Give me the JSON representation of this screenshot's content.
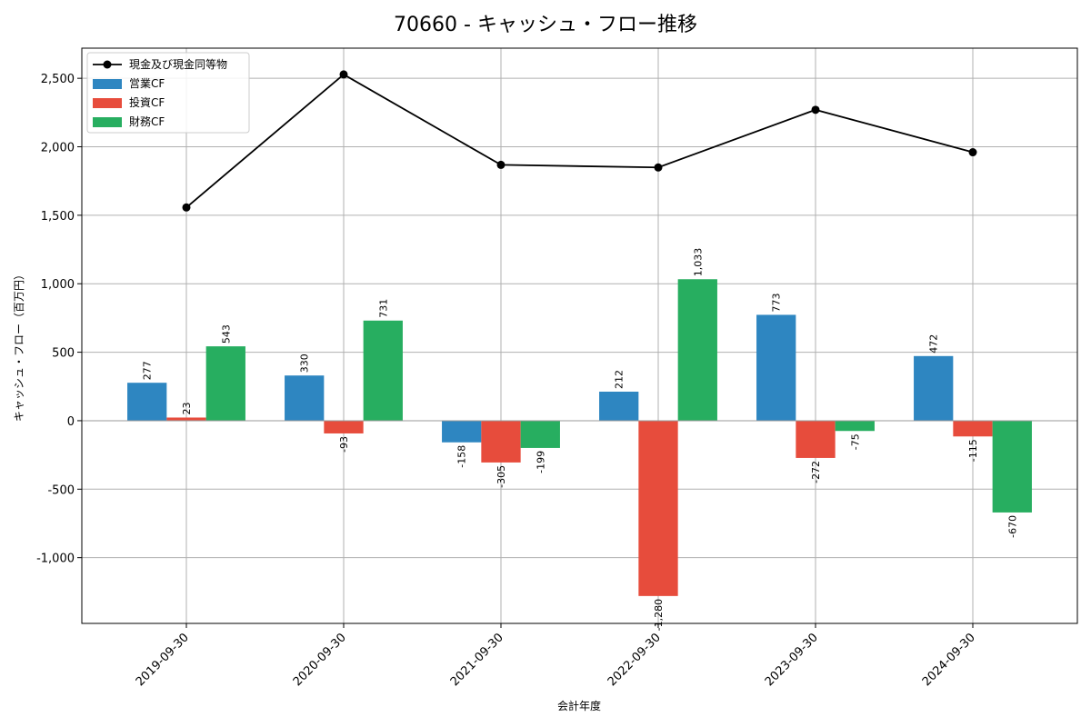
{
  "chart_data": {
    "type": "bar",
    "title": "70660 - キャッシュ・フロー推移",
    "xlabel": "会計年度",
    "ylabel": "キャッシュ・フロー（百万円）",
    "categories": [
      "2019-09-30",
      "2020-09-30",
      "2021-09-30",
      "2022-09-30",
      "2023-09-30",
      "2024-09-30"
    ],
    "series": [
      {
        "name": "営業CF",
        "type": "bar",
        "color": "#2e86c1",
        "values": [
          277,
          330,
          -158,
          212,
          773,
          472
        ],
        "labels": [
          "277",
          "330",
          "-158",
          "212",
          "773",
          "472"
        ]
      },
      {
        "name": "投資CF",
        "type": "bar",
        "color": "#e74c3c",
        "values": [
          23,
          -93,
          -305,
          -1280,
          -272,
          -115
        ],
        "labels": [
          "23",
          "-93",
          "-305",
          "-1,280",
          "-272",
          "-115"
        ]
      },
      {
        "name": "財務CF",
        "type": "bar",
        "color": "#27ae60",
        "values": [
          543,
          731,
          -199,
          1033,
          -75,
          -670
        ],
        "labels": [
          "543",
          "731",
          "-199",
          "1,033",
          "-75",
          "-670"
        ]
      },
      {
        "name": "現金及び現金同等物",
        "type": "line",
        "color": "#000000",
        "values": [
          1557,
          2528,
          1868,
          1849,
          2270,
          1960
        ]
      }
    ],
    "ylim": [
      -1480,
      2720
    ],
    "yticks": [
      -1000,
      -500,
      0,
      500,
      1000,
      1500,
      2000,
      2500
    ],
    "ytick_labels": [
      "-1,000",
      "-500",
      "0",
      "500",
      "1,000",
      "1,500",
      "2,000",
      "2,500"
    ],
    "grid": true,
    "legend": "top-left"
  }
}
